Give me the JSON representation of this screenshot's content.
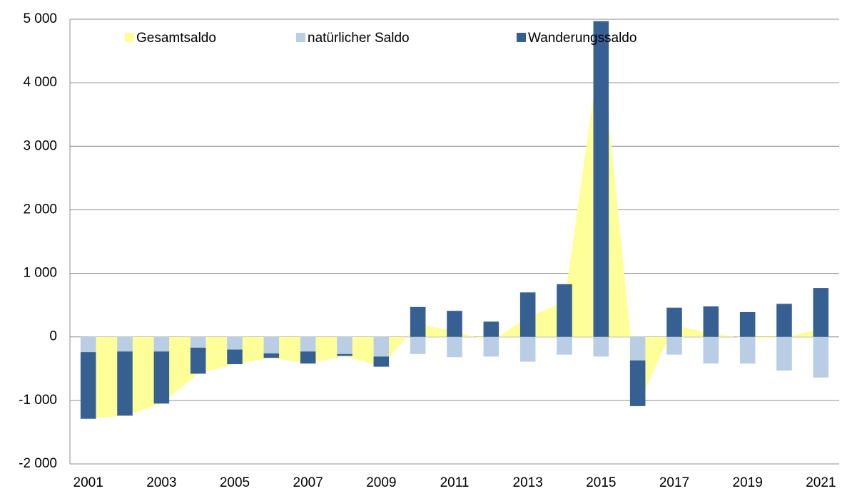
{
  "chart_data": {
    "type": "bar",
    "categories": [
      "2001",
      null,
      "2003",
      null,
      "2005",
      null,
      "2007",
      null,
      "2009",
      null,
      "2011",
      null,
      "2013",
      null,
      "2015",
      null,
      "2017",
      null,
      "2019",
      null,
      "2021"
    ],
    "series": [
      {
        "name": "Gesamtsaldo",
        "color": "#ffff99",
        "kind": "area",
        "values": [
          -1290,
          -1240,
          -1050,
          -580,
          -430,
          -330,
          -420,
          -300,
          -470,
          200,
          90,
          -70,
          310,
          550,
          4650,
          -1090,
          180,
          60,
          -30,
          -10,
          130
        ]
      },
      {
        "name": "natürlicher Saldo",
        "color": "#b9cde5",
        "kind": "bar",
        "values": [
          -240,
          -230,
          -230,
          -170,
          -200,
          -260,
          -230,
          -270,
          -310,
          -270,
          -320,
          -310,
          -390,
          -280,
          -310,
          -370,
          -280,
          -420,
          -420,
          -530,
          -640
        ]
      },
      {
        "name": "Wanderungssaldo",
        "color": "#366092",
        "kind": "bar",
        "values": [
          -1050,
          -1010,
          -820,
          -410,
          -230,
          -70,
          -190,
          -30,
          -160,
          470,
          410,
          240,
          700,
          830,
          4970,
          -720,
          460,
          480,
          390,
          520,
          770
        ]
      }
    ],
    "ylim": [
      -2000,
      5000
    ],
    "yticks": [
      {
        "value": -2000,
        "label": "-2 000"
      },
      {
        "value": -1000,
        "label": "-1 000"
      },
      0,
      {
        "value": 1000,
        "label": "1 000"
      },
      {
        "value": 2000,
        "label": "2 000"
      },
      {
        "value": 3000,
        "label": "3 000"
      },
      {
        "value": 4000,
        "label": "4 000"
      },
      {
        "value": 5000,
        "label": "5 000"
      }
    ],
    "grid": true
  }
}
